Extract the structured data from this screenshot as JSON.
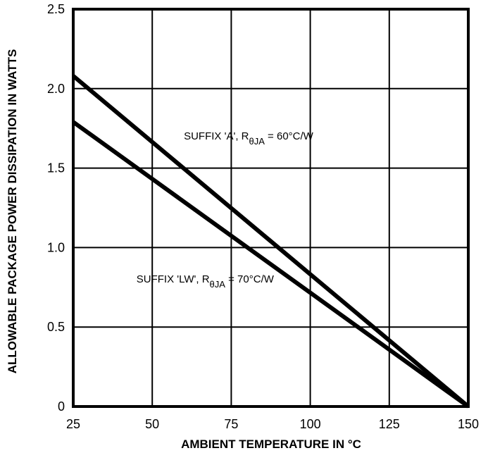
{
  "chart_data": {
    "type": "line",
    "title": "",
    "xlabel": "AMBIENT TEMPERATURE IN °C",
    "ylabel": "ALLOWABLE PACKAGE POWER DISSIPATION IN WATTS",
    "xlim": [
      25,
      150
    ],
    "ylim": [
      0,
      2.5
    ],
    "grid": true,
    "x_ticks": [
      25,
      50,
      75,
      100,
      125,
      150
    ],
    "x_tick_labels": [
      "25",
      "50",
      "75",
      "100",
      "125",
      "150"
    ],
    "y_ticks": [
      0,
      0.5,
      1.0,
      1.5,
      2.0,
      2.5
    ],
    "y_tick_labels": [
      "0",
      "0.5",
      "1.0",
      "1.5",
      "2.0",
      "2.5"
    ],
    "series": [
      {
        "x": [
          25,
          150
        ],
        "values": [
          2.08,
          0
        ]
      },
      {
        "x": [
          25,
          150
        ],
        "values": [
          1.79,
          0
        ]
      }
    ],
    "annotations": [
      {
        "pre": "SUFFIX 'A', R",
        "sub": "θJA",
        "post": " = 60°C/W",
        "x": 60,
        "y": 1.68
      },
      {
        "pre": "SUFFIX 'LW', R",
        "sub": "θJA",
        "post": " = 70°C/W",
        "x": 45,
        "y": 0.78
      }
    ]
  }
}
